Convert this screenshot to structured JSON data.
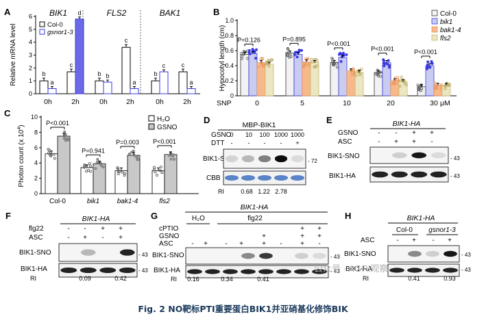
{
  "caption": "Fig. 2 NO靶标PTI重要蛋白BIK1并亚硝基化修饰BIK",
  "watermark": "公众号 · AGRI观察",
  "chart_data": [
    {
      "panel": "A",
      "type": "bar",
      "ylabel": "Relative mRNA level",
      "ylim": [
        0,
        6
      ],
      "yticks": [
        0,
        1,
        2,
        3,
        4,
        5,
        6
      ],
      "legend": [
        "Col-0",
        "gsnor1-3"
      ],
      "genes": [
        "BIK1",
        "FLS2",
        "BAK1"
      ],
      "categories": [
        "0h",
        "2h",
        "0h",
        "2h",
        "0h",
        "2h"
      ],
      "series": [
        {
          "name": "Col-0",
          "values": [
            1.0,
            1.7,
            1.0,
            3.6,
            1.0,
            1.7
          ]
        },
        {
          "name": "gsnor1-3",
          "values": [
            0.4,
            5.8,
            0.9,
            0.4,
            1.7,
            0.4
          ]
        }
      ],
      "letters": [
        [
          "b",
          "a"
        ],
        [
          "c",
          "d"
        ],
        [
          "b",
          "b"
        ],
        [
          "c",
          "a"
        ],
        [
          "b",
          "c"
        ],
        [
          "c",
          "a"
        ]
      ]
    },
    {
      "panel": "B",
      "type": "bar",
      "ylabel": "Hypocotyl length (cm)",
      "ylim": [
        0,
        1.0
      ],
      "yticks": [
        "0",
        "0.2",
        "0.4",
        "0.6",
        "0.8",
        "1.0"
      ],
      "xlabel_left": "SNP",
      "xlabel_unit": "μM",
      "categories": [
        "0",
        "5",
        "10",
        "20",
        "30"
      ],
      "legend": [
        "Col-0",
        "bik1",
        "bak1-4",
        "fls2"
      ],
      "series": [
        {
          "name": "Col-0",
          "values": [
            0.55,
            0.57,
            0.44,
            0.31,
            0.12
          ],
          "color": "#f2f2f2"
        },
        {
          "name": "bik1",
          "values": [
            0.56,
            0.55,
            0.51,
            0.44,
            0.4
          ],
          "color": "#c9cbf0"
        },
        {
          "name": "bak1-4",
          "values": [
            0.44,
            0.45,
            0.33,
            0.2,
            0.14
          ],
          "color": "#f7b98a"
        },
        {
          "name": "fls2",
          "values": [
            0.42,
            0.44,
            0.31,
            0.19,
            0.14
          ],
          "color": "#ebe6c3"
        }
      ],
      "pvalues": [
        "P=0.126",
        "P=0.895",
        "P<0.001",
        "P<0.001",
        "P<0.001"
      ]
    },
    {
      "panel": "C",
      "type": "bar",
      "ylabel": "Photon count (x 10",
      "ylabel_sup": "4",
      "ylabel_end": ")",
      "ylim": [
        0,
        10
      ],
      "yticks": [
        0,
        2,
        4,
        6,
        8,
        10
      ],
      "legend": [
        "H₂O",
        "GSNO"
      ],
      "categories": [
        "Col-0",
        "bik1",
        "bak1-4",
        "fls2"
      ],
      "series": [
        {
          "name": "H₂O",
          "values": [
            5.2,
            3.4,
            3.0,
            3.0
          ],
          "color": "#ffffff"
        },
        {
          "name": "GSNO",
          "values": [
            7.5,
            3.9,
            5.0,
            5.1
          ],
          "color": "#c8c8c8"
        }
      ],
      "pvalues": [
        "P<0.001",
        "P=0.941",
        "P=0.003",
        "P<0.001"
      ]
    }
  ],
  "panels": {
    "A": {
      "letter": "A"
    },
    "B": {
      "letter": "B"
    },
    "C": {
      "letter": "C"
    },
    "D": {
      "letter": "D",
      "header": "MBP-BIK1",
      "gsno_label": "GSNO",
      "dtt_label": "DTT",
      "gsno_values": [
        "0",
        "10",
        "100",
        "1000",
        "1000"
      ],
      "dtt_values": [
        "-",
        "-",
        "-",
        "-",
        "+"
      ],
      "row1_label": "BIK1-SNO",
      "row2_label": "CBB",
      "ri_label": "RI",
      "ri_values": [
        "0.68",
        "1.22",
        "2.78"
      ],
      "marker": "72",
      "band_intensity": [
        0.08,
        0.2,
        0.45,
        0.95,
        0.05
      ]
    },
    "E": {
      "letter": "E",
      "header": "BIK1-HA",
      "gsno_label": "GSNO",
      "asc_label": "ASC",
      "gsno_values": [
        "-",
        "-",
        "+",
        "+"
      ],
      "asc_values": [
        "-",
        "+",
        "+",
        "-"
      ],
      "row1_label": "BIK1-SNO",
      "row2_label": "BIK1-HA",
      "marker": "43",
      "band_intensity": [
        0.0,
        0.1,
        0.9,
        0.05
      ]
    },
    "F": {
      "letter": "F",
      "header": "BIK1-HA",
      "flg_label": "flg22",
      "asc_label": "ASC",
      "flg_values": [
        "-",
        "-",
        "+",
        "+"
      ],
      "asc_values": [
        "-",
        "+",
        "-",
        "+"
      ],
      "row1_label": "BIK1-SNO",
      "row2_label": "BIK1-HA",
      "ri_label": "RI",
      "ri_values": [
        "0.09",
        "0.42"
      ],
      "marker": "43",
      "band_intensity": [
        0.0,
        0.2,
        0.0,
        0.85
      ]
    },
    "G": {
      "letter": "G",
      "header": "BIK1-HA",
      "h2o_label": "H₂O",
      "flg_label": "flg22",
      "cptio_label": "cPTIO",
      "gsno_label": "GSNO",
      "asc_label": "ASC",
      "cptio_values": [
        "",
        "",
        "",
        "",
        "",
        "",
        "+",
        "+"
      ],
      "gsno_values": [
        "",
        "",
        "",
        "",
        "+",
        "",
        "+",
        "+"
      ],
      "asc_values": [
        "-",
        "+",
        "-",
        "+",
        "+",
        "-",
        "+",
        "-"
      ],
      "row1_label": "BIK1-SNO",
      "row2_label": "BIK1-HA",
      "ri_label": "RI",
      "ri_values": [
        "0.16",
        "0.34",
        "0.41"
      ],
      "marker": "43",
      "band_intensity": [
        0.0,
        0.0,
        0.0,
        0.4,
        0.75,
        0.0,
        0.1,
        0.05
      ]
    },
    "H": {
      "letter": "H",
      "header": "BIK1-HA",
      "group1": "Col-0",
      "group2": "gsnor1-3",
      "asc_label": "ASC",
      "asc_values": [
        "-",
        "+",
        "-",
        "+"
      ],
      "row1_label": "BIK1-SNO",
      "row2_label": "BIK1-HA",
      "ri_label": "RI",
      "ri_values": [
        "0.41",
        "0.93"
      ],
      "marker": "43",
      "band_intensity": [
        0.0,
        0.4,
        0.1,
        0.9
      ]
    }
  }
}
